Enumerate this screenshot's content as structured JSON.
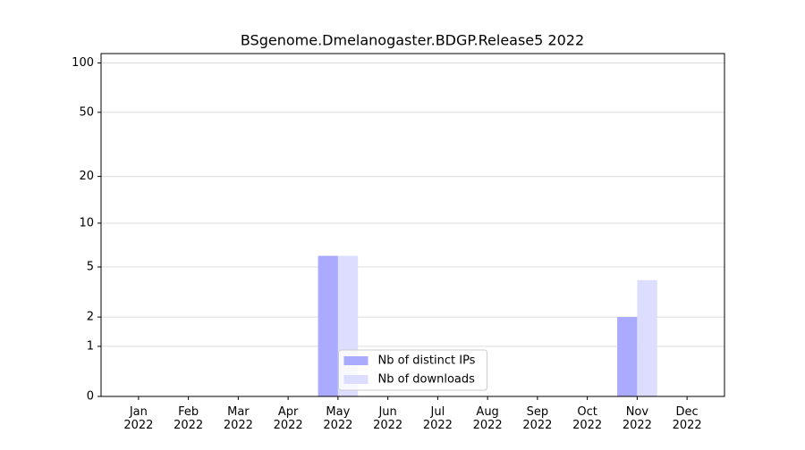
{
  "chart_data": {
    "type": "bar",
    "title": "BSgenome.Dmelanogaster.BDGP.Release5 2022",
    "categories": [
      "Jan\n2022",
      "Feb\n2022",
      "Mar\n2022",
      "Apr\n2022",
      "May\n2022",
      "Jun\n2022",
      "Jul\n2022",
      "Aug\n2022",
      "Sep\n2022",
      "Oct\n2022",
      "Nov\n2022",
      "Dec\n2022"
    ],
    "series": [
      {
        "name": "Nb of distinct IPs",
        "color": "#aaaaff",
        "values": [
          0,
          0,
          0,
          0,
          6,
          0,
          0,
          0,
          0,
          0,
          2,
          0
        ]
      },
      {
        "name": "Nb of downloads",
        "color": "#ddddff",
        "values": [
          0,
          0,
          0,
          0,
          6,
          0,
          0,
          0,
          0,
          0,
          4,
          0
        ]
      }
    ],
    "yscale": "symlog",
    "ylim": [
      0,
      114
    ],
    "yticks": [
      0,
      1,
      2,
      5,
      10,
      20,
      50,
      100
    ],
    "grid": true,
    "legend": "lower center"
  }
}
